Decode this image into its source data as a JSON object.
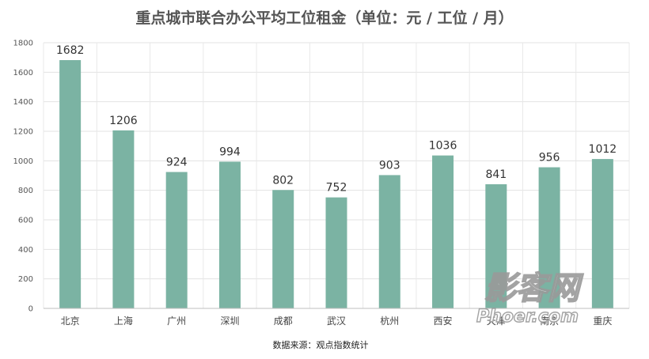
{
  "chart_data": {
    "type": "bar",
    "title": "重点城市联合办公平均工位租金（单位：元 / 工位 / 月）",
    "categories": [
      "北京",
      "上海",
      "广州",
      "深圳",
      "成都",
      "武汉",
      "杭州",
      "西安",
      "天津",
      "南京",
      "重庆"
    ],
    "values": [
      1682,
      1206,
      924,
      994,
      802,
      752,
      903,
      1036,
      841,
      956,
      1012
    ],
    "ylim": [
      0,
      1800
    ],
    "yticks": [
      0,
      200,
      400,
      600,
      800,
      1000,
      1200,
      1400,
      1600,
      1800
    ],
    "xlabel": "",
    "ylabel": "",
    "grid": true,
    "bar_color": "#7bb3a3",
    "source": "数据来源：观点指数统计"
  },
  "watermark": {
    "line1": "影客网",
    "line2": "Phoer.com"
  }
}
